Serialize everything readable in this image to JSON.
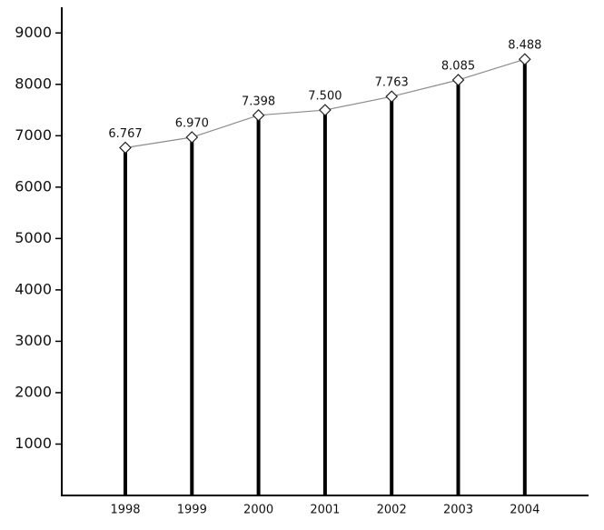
{
  "chart_data": {
    "type": "bar",
    "line_overlay": true,
    "categories": [
      "1998",
      "1999",
      "2000",
      "2001",
      "2002",
      "2003",
      "2004"
    ],
    "values": [
      6767,
      6970,
      7398,
      7500,
      7763,
      8085,
      8488
    ],
    "value_labels": [
      "6.767",
      "6.970",
      "7.398",
      "7.500",
      "7.763",
      "8.085",
      "8.488"
    ],
    "color": "#000000",
    "line_color": "#8c8c8c",
    "ylim": [
      0,
      9500
    ],
    "yticks": [
      1000,
      2000,
      3000,
      4000,
      5000,
      6000,
      7000,
      8000,
      9000
    ]
  }
}
